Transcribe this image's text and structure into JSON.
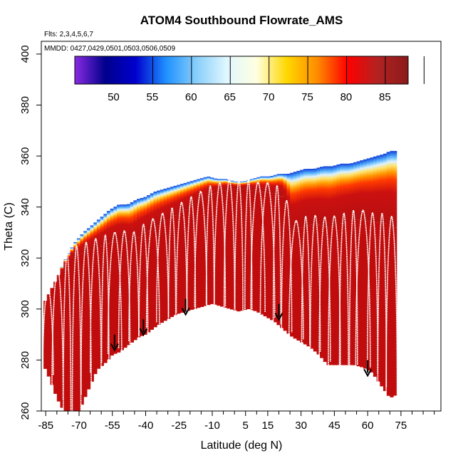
{
  "chart_data": {
    "type": "heatmap",
    "title": "ATOM4 Southbound Flowrate_AMS",
    "note_flights": "Flts: 2,3,4,5,6,7",
    "note_dates": "MMDD: 0427,0429,0501,0503,0506,0509",
    "xlabel": "Latitude (deg N)",
    "ylabel": "Theta (C)",
    "xlim": [
      -87,
      93
    ],
    "ylim": [
      260,
      405
    ],
    "xticks": [
      -85,
      -70,
      -55,
      -40,
      -25,
      -10,
      5,
      15,
      30,
      45,
      60,
      75
    ],
    "yticks": [
      260,
      280,
      300,
      320,
      340,
      360,
      380,
      400
    ],
    "colorbar": {
      "range": [
        45,
        88
      ],
      "ticks": [
        50,
        55,
        60,
        65,
        70,
        75,
        80,
        85
      ],
      "colors": [
        "#8a2be2",
        "#00008b",
        "#0000cd",
        "#1e90ff",
        "#87cefa",
        "#e0f7ff",
        "#ffffe0",
        "#ffd700",
        "#ff8c00",
        "#ff0000",
        "#b22222",
        "#8b1a1a"
      ]
    },
    "surface_profile": [
      [
        -86,
        278
      ],
      [
        -83,
        272
      ],
      [
        -80,
        265
      ],
      [
        -77,
        260
      ],
      [
        -75,
        258
      ],
      [
        -73,
        258
      ],
      [
        -70,
        260
      ],
      [
        -66,
        268
      ],
      [
        -62,
        276
      ],
      [
        -58,
        279
      ],
      [
        -55,
        282
      ],
      [
        -52,
        283
      ],
      [
        -49,
        285
      ],
      [
        -46,
        287
      ],
      [
        -43,
        289
      ],
      [
        -40,
        290
      ],
      [
        -37,
        292
      ],
      [
        -34,
        294
      ],
      [
        -30,
        296
      ],
      [
        -26,
        298
      ],
      [
        -22,
        299
      ],
      [
        -18,
        300
      ],
      [
        -14,
        301
      ],
      [
        -10,
        302
      ],
      [
        -6,
        301
      ],
      [
        -2,
        300
      ],
      [
        2,
        299
      ],
      [
        6,
        300
      ],
      [
        10,
        299
      ],
      [
        14,
        297
      ],
      [
        18,
        295
      ],
      [
        22,
        292
      ],
      [
        26,
        289
      ],
      [
        30,
        287
      ],
      [
        34,
        285
      ],
      [
        38,
        282
      ],
      [
        42,
        278
      ],
      [
        46,
        278
      ],
      [
        50,
        278
      ],
      [
        54,
        278
      ],
      [
        58,
        277
      ],
      [
        62,
        275
      ],
      [
        66,
        270
      ],
      [
        70,
        265
      ],
      [
        72,
        266
      ]
    ],
    "top_profile": [
      [
        -86,
        300
      ],
      [
        -83,
        305
      ],
      [
        -80,
        312
      ],
      [
        -76,
        320
      ],
      [
        -72,
        326
      ],
      [
        -68,
        330
      ],
      [
        -64,
        333
      ],
      [
        -60,
        336
      ],
      [
        -56,
        339
      ],
      [
        -52,
        341
      ],
      [
        -48,
        341
      ],
      [
        -44,
        343
      ],
      [
        -40,
        344
      ],
      [
        -36,
        346
      ],
      [
        -32,
        347
      ],
      [
        -28,
        348
      ],
      [
        -24,
        349
      ],
      [
        -20,
        350
      ],
      [
        -16,
        351
      ],
      [
        -12,
        352
      ],
      [
        -8,
        351
      ],
      [
        -4,
        351
      ],
      [
        0,
        350
      ],
      [
        4,
        350
      ],
      [
        8,
        351
      ],
      [
        12,
        352
      ],
      [
        16,
        352
      ],
      [
        20,
        353
      ],
      [
        24,
        353
      ],
      [
        28,
        354
      ],
      [
        32,
        355
      ],
      [
        36,
        355
      ],
      [
        40,
        356
      ],
      [
        44,
        356
      ],
      [
        48,
        357
      ],
      [
        52,
        357
      ],
      [
        56,
        358
      ],
      [
        60,
        359
      ],
      [
        64,
        360
      ],
      [
        68,
        361
      ],
      [
        70,
        362
      ],
      [
        72,
        362
      ]
    ],
    "gradient_profile": [
      [
        -86,
        302
      ],
      [
        -80,
        312
      ],
      [
        -74,
        320
      ],
      [
        -68,
        322
      ],
      [
        -62,
        324
      ],
      [
        -56,
        326
      ],
      [
        -50,
        327
      ],
      [
        -46,
        326
      ],
      [
        -42,
        329
      ],
      [
        -38,
        331
      ],
      [
        -34,
        333
      ],
      [
        -30,
        335
      ],
      [
        -26,
        337
      ],
      [
        -22,
        339
      ],
      [
        -18,
        341
      ],
      [
        -14,
        343
      ],
      [
        -10,
        345
      ],
      [
        -6,
        346
      ],
      [
        -2,
        347
      ],
      [
        2,
        347
      ],
      [
        6,
        347
      ],
      [
        10,
        346
      ],
      [
        14,
        346
      ],
      [
        18,
        345
      ],
      [
        22,
        344
      ],
      [
        26,
        330
      ],
      [
        30,
        332
      ],
      [
        34,
        333
      ],
      [
        38,
        333
      ],
      [
        42,
        332
      ],
      [
        46,
        333
      ],
      [
        50,
        334
      ],
      [
        54,
        335
      ],
      [
        58,
        335
      ],
      [
        62,
        334
      ],
      [
        66,
        334
      ],
      [
        70,
        333
      ],
      [
        72,
        332
      ]
    ],
    "arrows": [
      [
        -54,
        290
      ],
      [
        -41,
        296
      ],
      [
        -22,
        304
      ],
      [
        20,
        302
      ],
      [
        60,
        280
      ]
    ],
    "flight_tracks": "white vertical flight profile lines overlaid"
  }
}
